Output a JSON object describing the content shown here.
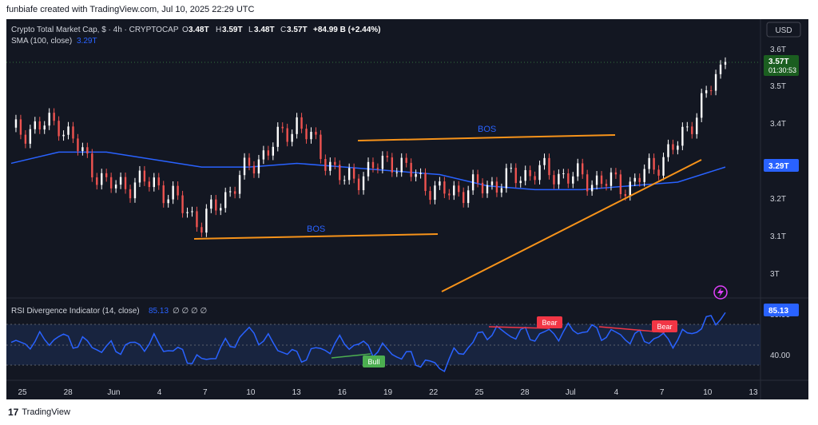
{
  "header": {
    "caption": "funbiafe created with TradingView.com, Jul 10, 2025 22:29 UTC",
    "symbol_line": "Crypto Total Market Cap, $ · 4h · CRYPTOCAP",
    "ohlc": {
      "o": "3.48T",
      "h": "3.59T",
      "l": "3.48T",
      "c": "3.57T",
      "change": "+84.99 B (+2.44%)"
    },
    "sma_label": "SMA (100, close)",
    "sma_value": "3.29T",
    "currency": "USD"
  },
  "price_axis": {
    "ticks": [
      "3.6T",
      "3.5T",
      "3.4T",
      "3.2T",
      "3.1T",
      "3T"
    ],
    "last_price": "3.57T",
    "countdown": "01:30:53",
    "sma_tag": "3.29T"
  },
  "annotations": {
    "bos_upper": "BOS",
    "bos_lower": "BOS",
    "bull": "Bull",
    "bear1": "Bear",
    "bear2": "Bear"
  },
  "rsi": {
    "label": "RSI Divergence Indicator (14, close)",
    "value": "85.13",
    "extra": "∅ ∅ ∅ ∅",
    "ticks": [
      "80.00",
      "40.00"
    ],
    "tag": "85.13"
  },
  "time_axis": [
    "25",
    "28",
    "Jun",
    "4",
    "7",
    "10",
    "13",
    "16",
    "19",
    "22",
    "25",
    "28",
    "Jul",
    "4",
    "7",
    "10",
    "13"
  ],
  "footer": {
    "brand": "TradingView"
  },
  "colors": {
    "background": "#131722",
    "up": "#ffffff",
    "down": "#ef5350",
    "sma": "#2962ff",
    "trendline": "#f7931a",
    "rsi": "#2962ff",
    "bull": "#4caf50",
    "bear": "#f23645",
    "last_price": "#1b5e20"
  },
  "chart_data": [
    {
      "type": "candlestick",
      "title": "Crypto Total Market Cap, $ · 4h · CRYPTOCAP",
      "x": [
        "May 25",
        "May 28",
        "Jun 1",
        "Jun 4",
        "Jun 7",
        "Jun 10",
        "Jun 13",
        "Jun 16",
        "Jun 19",
        "Jun 22",
        "Jun 25",
        "Jun 28",
        "Jul 1",
        "Jul 4",
        "Jul 7",
        "Jul 10"
      ],
      "close": [
        3.38,
        3.41,
        3.24,
        3.25,
        3.14,
        3.29,
        3.41,
        3.25,
        3.31,
        3.22,
        3.24,
        3.28,
        3.26,
        3.24,
        3.35,
        3.57
      ],
      "sma_100": [
        3.3,
        3.33,
        3.33,
        3.31,
        3.29,
        3.29,
        3.3,
        3.29,
        3.28,
        3.27,
        3.24,
        3.23,
        3.23,
        3.24,
        3.25,
        3.29
      ],
      "ylim": [
        2.95,
        3.62
      ],
      "y_ticks": [
        3.0,
        3.1,
        3.2,
        3.4,
        3.5,
        3.6
      ],
      "last_close": 3.57
    },
    {
      "type": "line",
      "title": "RSI Divergence Indicator (14, close)",
      "x": [
        "May 25",
        "May 28",
        "Jun 1",
        "Jun 4",
        "Jun 7",
        "Jun 10",
        "Jun 13",
        "Jun 16",
        "Jun 19",
        "Jun 22",
        "Jun 25",
        "Jun 28",
        "Jul 1",
        "Jul 4",
        "Jul 7",
        "Jul 10"
      ],
      "values": [
        52,
        60,
        48,
        55,
        35,
        66,
        40,
        55,
        45,
        30,
        66,
        62,
        68,
        60,
        58,
        85.13
      ],
      "ylim": [
        20,
        95
      ],
      "y_ticks": [
        40,
        80
      ],
      "last": 85.13
    }
  ]
}
